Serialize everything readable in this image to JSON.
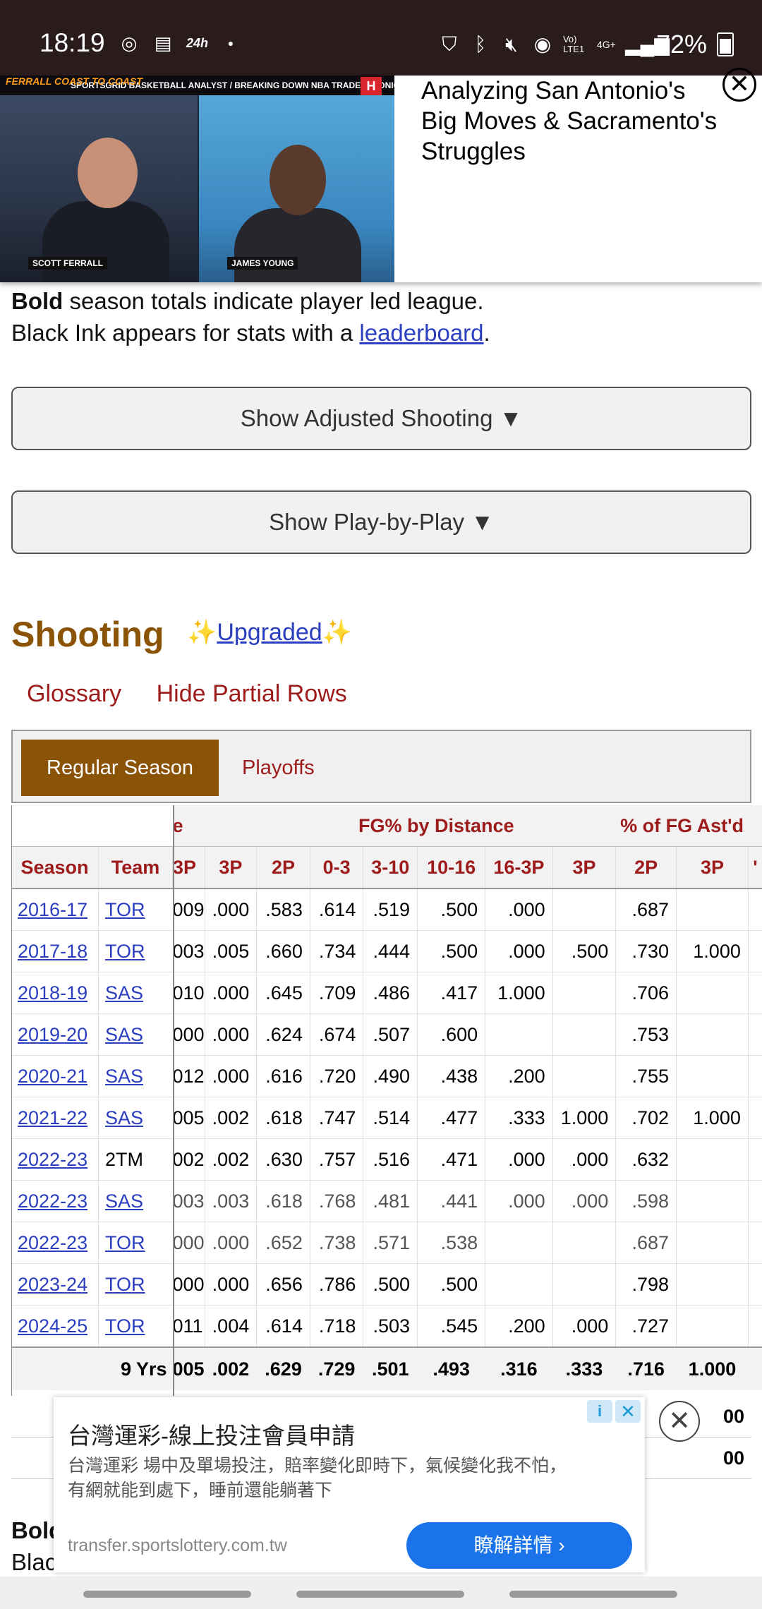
{
  "status_bar": {
    "time": "18:19",
    "battery": "72%",
    "network_label": "4G+",
    "lte_label": "Vo) LTE1",
    "icons": [
      "instagram-icon",
      "note-icon",
      "24h-icon",
      "dot-icon",
      "vpn-icon",
      "bluetooth-icon",
      "mute-icon",
      "hotspot-icon",
      "signal-icon",
      "battery-icon"
    ],
    "left_label_24h": "24h"
  },
  "video_ad": {
    "title": "Analyzing San Antonio's Big Moves & Sacramento's Struggles",
    "banner_text": "SPORTSGRID BASKETBALL ANALYST / BREAKING DOWN NBA TRADES / TONIGHT'S PICKS",
    "logo_text": "FERRALL COAST TO COAST",
    "person_left": "SCOTT FERRALL",
    "person_right": "JAMES YOUNG",
    "close_glyph": "✕"
  },
  "notes": {
    "bold_word": "Bold",
    "line1_rest": " season totals indicate player led league.",
    "line2_pre": "Black Ink appears for stats with a ",
    "line2_link": "leaderboard",
    "line2_post": "."
  },
  "buttons": {
    "adjusted_shooting": "Show Adjusted Shooting ▼",
    "play_by_play": "Show Play-by-Play ▼"
  },
  "section": {
    "title": "Shooting",
    "upgraded_prefix": "✨",
    "upgraded_label": "Upgraded",
    "upgraded_suffix": "✨",
    "glossary": "Glossary",
    "hide_partial": "Hide Partial Rows"
  },
  "tabs": {
    "regular": "Regular Season",
    "playoffs": "Playoffs"
  },
  "table": {
    "over_headers": {
      "partial_left": "e",
      "fg_by_distance": "FG% by Distance",
      "pct_fg_astd": "% of FG Ast'd"
    },
    "headers": [
      "Season",
      "Team",
      "3P",
      "3P",
      "2P",
      "0-3",
      "3-10",
      "10-16",
      "16-3P",
      "3P",
      "2P",
      "3P",
      "'"
    ],
    "rows": [
      {
        "season": "2016-17",
        "team": "TOR",
        "team_link": true,
        "c": [
          "009",
          ".000",
          ".583",
          ".614",
          ".519",
          ".500",
          ".000",
          "",
          ".687",
          ""
        ],
        "partial": false
      },
      {
        "season": "2017-18",
        "team": "TOR",
        "team_link": true,
        "c": [
          "003",
          ".005",
          ".660",
          ".734",
          ".444",
          ".500",
          ".000",
          ".500",
          ".730",
          "1.000"
        ],
        "partial": false
      },
      {
        "season": "2018-19",
        "team": "SAS",
        "team_link": true,
        "c": [
          "010",
          ".000",
          ".645",
          ".709",
          ".486",
          ".417",
          "1.000",
          "",
          ".706",
          ""
        ],
        "partial": false
      },
      {
        "season": "2019-20",
        "team": "SAS",
        "team_link": true,
        "c": [
          "000",
          ".000",
          ".624",
          ".674",
          ".507",
          ".600",
          "",
          "",
          ".753",
          ""
        ],
        "partial": false
      },
      {
        "season": "2020-21",
        "team": "SAS",
        "team_link": true,
        "c": [
          "012",
          ".000",
          ".616",
          ".720",
          ".490",
          ".438",
          ".200",
          "",
          ".755",
          ""
        ],
        "partial": false
      },
      {
        "season": "2021-22",
        "team": "SAS",
        "team_link": true,
        "c": [
          "005",
          ".002",
          ".618",
          ".747",
          ".514",
          ".477",
          ".333",
          "1.000",
          ".702",
          "1.000"
        ],
        "partial": false
      },
      {
        "season": "2022-23",
        "team": "2TM",
        "team_link": false,
        "c": [
          "002",
          ".002",
          ".630",
          ".757",
          ".516",
          ".471",
          ".000",
          ".000",
          ".632",
          ""
        ],
        "partial": false
      },
      {
        "season": "2022-23",
        "team": "SAS",
        "team_link": true,
        "c": [
          "003",
          ".003",
          ".618",
          ".768",
          ".481",
          ".441",
          ".000",
          ".000",
          ".598",
          ""
        ],
        "partial": true
      },
      {
        "season": "2022-23",
        "team": "TOR",
        "team_link": true,
        "c": [
          "000",
          ".000",
          ".652",
          ".738",
          ".571",
          ".538",
          "",
          "",
          ".687",
          ""
        ],
        "partial": true
      },
      {
        "season": "2023-24",
        "team": "TOR",
        "team_link": true,
        "c": [
          "000",
          ".000",
          ".656",
          ".786",
          ".500",
          ".500",
          "",
          "",
          ".798",
          ""
        ],
        "partial": false
      },
      {
        "season": "2024-25",
        "team": "TOR",
        "team_link": true,
        "c": [
          "011",
          ".004",
          ".614",
          ".718",
          ".503",
          ".545",
          ".200",
          ".000",
          ".727",
          ""
        ],
        "partial": false
      }
    ],
    "total": {
      "label": "9 Yrs",
      "c": [
        "005",
        ".002",
        ".629",
        ".729",
        ".501",
        ".493",
        ".316",
        ".333",
        ".716",
        "1.000"
      ]
    },
    "under_rows": [
      "00",
      "00"
    ]
  },
  "bottom_ad": {
    "title": "台灣運彩-線上投注會員申請",
    "description": "台灣運彩 場中及單場投注，賠率變化即時下，氣候變化我不怕，有網就能到處下，睡前還能躺著下",
    "url": "transfer.sportslottery.com.tw",
    "cta": "瞭解詳情 ›",
    "info_glyph": "i",
    "x_glyph": "✕",
    "close_glyph": "✕"
  },
  "under_text": {
    "line1": "Bold",
    "line2": "Blac"
  }
}
